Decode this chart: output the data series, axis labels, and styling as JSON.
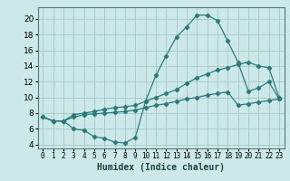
{
  "xlabel": "Humidex (Indice chaleur)",
  "bg_color": "#cce8e8",
  "grid_color": "#aacccc",
  "line_color": "#2d7a7a",
  "xlim": [
    -0.5,
    23.5
  ],
  "ylim": [
    3.5,
    21.5
  ],
  "yticks": [
    4,
    6,
    8,
    10,
    12,
    14,
    16,
    18,
    20
  ],
  "xtick_labels": [
    "0",
    "1",
    "2",
    "3",
    "4",
    "5",
    "6",
    "7",
    "8",
    "9",
    "10",
    "11",
    "12",
    "13",
    "14",
    "15",
    "16",
    "17",
    "18",
    "19",
    "20",
    "21",
    "22",
    "23"
  ],
  "line1_x": [
    0,
    1,
    2,
    3,
    4,
    5,
    6,
    7,
    8,
    9,
    10,
    11,
    12,
    13,
    14,
    15,
    16,
    17,
    18,
    19,
    20,
    21,
    22,
    23
  ],
  "line1_y": [
    7.5,
    7.0,
    7.0,
    6.0,
    5.8,
    5.0,
    4.8,
    4.3,
    4.2,
    4.9,
    9.5,
    12.8,
    15.3,
    17.7,
    19.0,
    20.5,
    20.5,
    19.8,
    17.2,
    14.5,
    10.8,
    11.2,
    12.0,
    9.8
  ],
  "line2_x": [
    0,
    1,
    2,
    3,
    4,
    5,
    6,
    7,
    8,
    9,
    10,
    11,
    12,
    13,
    14,
    15,
    16,
    17,
    18,
    19,
    20,
    21,
    22,
    23
  ],
  "line2_y": [
    7.5,
    7.0,
    7.0,
    7.8,
    8.0,
    8.2,
    8.5,
    8.7,
    8.8,
    9.0,
    9.5,
    10.0,
    10.5,
    11.0,
    11.8,
    12.5,
    13.0,
    13.5,
    13.8,
    14.2,
    14.5,
    14.0,
    13.8,
    10.0
  ],
  "line3_x": [
    0,
    1,
    2,
    3,
    4,
    5,
    6,
    7,
    8,
    9,
    10,
    11,
    12,
    13,
    14,
    15,
    16,
    17,
    18,
    19,
    20,
    21,
    22,
    23
  ],
  "line3_y": [
    7.5,
    7.0,
    7.0,
    7.5,
    7.8,
    7.9,
    8.0,
    8.1,
    8.2,
    8.4,
    8.7,
    9.0,
    9.2,
    9.5,
    9.8,
    10.0,
    10.3,
    10.5,
    10.7,
    9.0,
    9.2,
    9.4,
    9.6,
    9.8
  ]
}
